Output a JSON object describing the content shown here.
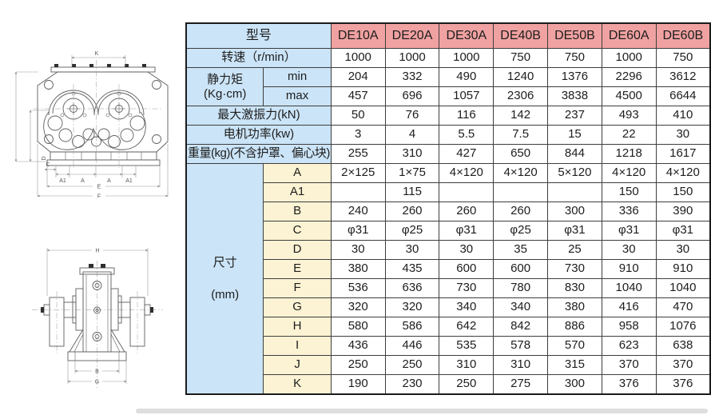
{
  "colors": {
    "header_pink": "#f0a1a1",
    "label_blue": "#cbe4f7",
    "letter_cream": "#fbf3d3",
    "border_dark": "#3e3e3e",
    "text_dark": "#1d1d1d",
    "drawing_stroke": "#5f5f5f"
  },
  "table": {
    "header": {
      "label": "型号",
      "models": [
        "DE10A",
        "DE20A",
        "DE30A",
        "DE40B",
        "DE50B",
        "DE60A",
        "DE60B"
      ]
    },
    "rows": [
      {
        "kind": "span2",
        "label": "转速（r/min）",
        "values": [
          "1000",
          "1000",
          "1000",
          "750",
          "750",
          "1000",
          "750"
        ]
      },
      {
        "kind": "group",
        "group": {
          "line1": "静力矩",
          "line2": "(Kg·cm)",
          "rowspan": 2,
          "gap": false
        },
        "sub": "min",
        "subClass": "blue",
        "values": [
          "204",
          "332",
          "490",
          "1240",
          "1376",
          "2296",
          "3612"
        ]
      },
      {
        "kind": "sub",
        "sub": "max",
        "subClass": "blue",
        "values": [
          "457",
          "696",
          "1057",
          "2306",
          "3838",
          "4500",
          "6644"
        ]
      },
      {
        "kind": "span2",
        "label": "最大激振力(kN)",
        "values": [
          "50",
          "76",
          "116",
          "142",
          "237",
          "493",
          "410"
        ]
      },
      {
        "kind": "span2",
        "label": "电机功率(kw)",
        "values": [
          "3",
          "4",
          "5.5",
          "7.5",
          "15",
          "22",
          "30"
        ]
      },
      {
        "kind": "span2",
        "label": "重量(kg)(不含护罩、偏心块)",
        "small": true,
        "values": [
          "255",
          "310",
          "427",
          "650",
          "844",
          "1218",
          "1617"
        ]
      },
      {
        "kind": "group",
        "group": {
          "line1": "尺寸",
          "line2": "(mm)",
          "rowspan": 12,
          "gap": true
        },
        "sub": "A",
        "subClass": "cream",
        "values": [
          "2×125",
          "1×75",
          "4×120",
          "4×120",
          "5×120",
          "4×120",
          "4×120"
        ]
      },
      {
        "kind": "sub",
        "sub": "A1",
        "subClass": "cream",
        "values": [
          "",
          "115",
          "",
          "",
          "",
          "150",
          "150"
        ]
      },
      {
        "kind": "sub",
        "sub": "B",
        "subClass": "cream",
        "values": [
          "240",
          "260",
          "260",
          "260",
          "300",
          "336",
          "390"
        ]
      },
      {
        "kind": "sub",
        "sub": "C",
        "subClass": "cream",
        "values": [
          "φ31",
          "φ25",
          "φ31",
          "φ25",
          "φ31",
          "φ31",
          "φ31"
        ]
      },
      {
        "kind": "sub",
        "sub": "D",
        "subClass": "cream",
        "values": [
          "30",
          "30",
          "30",
          "35",
          "25",
          "30",
          "30"
        ]
      },
      {
        "kind": "sub",
        "sub": "E",
        "subClass": "cream",
        "values": [
          "380",
          "435",
          "600",
          "600",
          "730",
          "910",
          "910"
        ]
      },
      {
        "kind": "sub",
        "sub": "F",
        "subClass": "cream",
        "values": [
          "536",
          "636",
          "730",
          "780",
          "830",
          "1040",
          "1040"
        ]
      },
      {
        "kind": "sub",
        "sub": "G",
        "subClass": "cream",
        "values": [
          "320",
          "320",
          "340",
          "340",
          "380",
          "416",
          "470"
        ]
      },
      {
        "kind": "sub",
        "sub": "H",
        "subClass": "cream",
        "values": [
          "580",
          "586",
          "642",
          "842",
          "886",
          "958",
          "1076"
        ]
      },
      {
        "kind": "sub",
        "sub": "I",
        "subClass": "cream",
        "values": [
          "436",
          "446",
          "535",
          "578",
          "570",
          "623",
          "638"
        ]
      },
      {
        "kind": "sub",
        "sub": "J",
        "subClass": "cream",
        "values": [
          "250",
          "250",
          "310",
          "310",
          "315",
          "370",
          "370"
        ]
      },
      {
        "kind": "sub",
        "sub": "K",
        "subClass": "cream",
        "values": [
          "190",
          "230",
          "250",
          "275",
          "300",
          "376",
          "376"
        ]
      }
    ]
  },
  "drawings": {
    "front": {
      "dim_k": "K",
      "dim_a1_left": "A1",
      "dim_a_left": "A",
      "dim_a_right": "A",
      "dim_a1_right": "A1",
      "dim_c": "C",
      "dim_d": "D",
      "dim_e": "E",
      "dim_f": "F"
    },
    "side": {
      "dim_h": "H",
      "dim_b": "B",
      "dim_g": "G"
    }
  }
}
